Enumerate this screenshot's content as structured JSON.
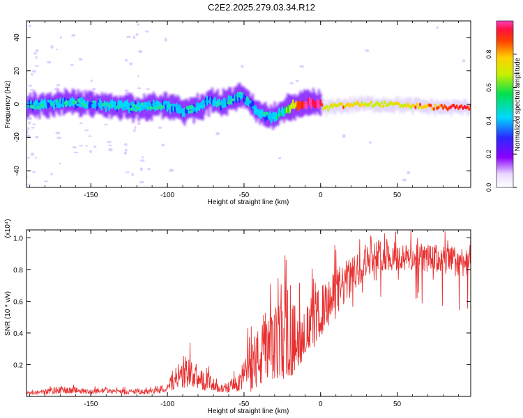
{
  "title": "C2E2.2025.279.03.34.R12",
  "colors": {
    "snr_line": "#e83030",
    "spectrum_core": "#ff0000",
    "spectrum_band": "#00c8ff",
    "spectrum_halo": "#8a00ff",
    "spectrum_faint": "#c9a8ff"
  },
  "chart_data": [
    {
      "type": "heatmap",
      "title": "",
      "xlabel": "Height of straight line (km)",
      "ylabel": "Frequency (Hz)",
      "xlim": [
        -192,
        98
      ],
      "ylim": [
        -50,
        50
      ],
      "xticks": [
        -150,
        -100,
        -50,
        0,
        50
      ],
      "xtick_labels": [
        "-150",
        "-100",
        "-50",
        "0",
        "50"
      ],
      "yticks": [
        -40,
        -20,
        0,
        20,
        40
      ],
      "ytick_labels": [
        "-40",
        "-20",
        "0",
        "20",
        "40"
      ],
      "colorbar": {
        "label": "Normalized spectral amplitude",
        "range": [
          0,
          1
        ],
        "ticks": [
          0.0,
          0.2,
          0.4,
          0.6,
          0.8
        ],
        "tick_labels": [
          "0.0",
          "0.2",
          "0.4",
          "0.6",
          "0.8"
        ]
      },
      "ridge": {
        "height_km": [
          -192,
          -175,
          -160,
          -150,
          -140,
          -130,
          -120,
          -110,
          -100,
          -90,
          -80,
          -72,
          -65,
          -58,
          -52,
          -47,
          -42,
          -37,
          -32,
          -27,
          -22,
          -18,
          -14,
          -10,
          -5,
          0,
          3,
          8,
          15,
          25,
          40,
          60,
          80,
          97
        ],
        "frequency_hz": [
          -1,
          0,
          1,
          0,
          -1,
          -1,
          -2,
          -1,
          -1,
          -4,
          -2,
          2,
          0,
          3,
          5,
          1,
          -4,
          -7,
          -8,
          -6,
          -3,
          -1,
          0,
          0,
          1,
          0,
          -3,
          -1,
          -1,
          0,
          0,
          -1,
          -2,
          -2
        ],
        "amplitude": [
          0.25,
          0.3,
          0.3,
          0.28,
          0.3,
          0.3,
          0.3,
          0.32,
          0.3,
          0.28,
          0.3,
          0.32,
          0.3,
          0.3,
          0.3,
          0.28,
          0.28,
          0.26,
          0.3,
          0.4,
          0.5,
          0.7,
          0.85,
          0.95,
          0.95,
          0.9,
          0.6,
          0.7,
          0.75,
          0.7,
          0.65,
          0.7,
          0.85,
          0.9
        ]
      }
    },
    {
      "type": "line",
      "title": "",
      "xlabel": "Height of straight line (km)",
      "ylabel": "SNR (10 * v/v)",
      "y_multiplier": "(x10⁴)",
      "xlim": [
        -192,
        98
      ],
      "ylim": [
        0,
        1.05
      ],
      "xticks": [
        -150,
        -100,
        -50,
        0,
        50
      ],
      "xtick_labels": [
        "-150",
        "-100",
        "-50",
        "0",
        "50"
      ],
      "yticks": [
        0.2,
        0.4,
        0.6,
        0.8,
        1.0
      ],
      "ytick_labels": [
        "0.2",
        "0.4",
        "0.6",
        "0.8",
        "1.0"
      ],
      "series": [
        {
          "name": "SNR",
          "x": [
            -192,
            -180,
            -170,
            -160,
            -150,
            -140,
            -130,
            -120,
            -110,
            -100,
            -95,
            -90,
            -85,
            -80,
            -75,
            -70,
            -65,
            -60,
            -55,
            -50,
            -45,
            -40,
            -35,
            -30,
            -25,
            -20,
            -15,
            -10,
            -5,
            0,
            5,
            10,
            15,
            20,
            25,
            30,
            35,
            40,
            50,
            60,
            70,
            80,
            90,
            97
          ],
          "y": [
            0.02,
            0.03,
            0.04,
            0.04,
            0.03,
            0.04,
            0.03,
            0.03,
            0.03,
            0.05,
            0.1,
            0.14,
            0.16,
            0.1,
            0.12,
            0.06,
            0.05,
            0.06,
            0.08,
            0.14,
            0.22,
            0.26,
            0.3,
            0.34,
            0.38,
            0.4,
            0.38,
            0.42,
            0.48,
            0.55,
            0.6,
            0.66,
            0.72,
            0.76,
            0.82,
            0.86,
            0.9,
            0.9,
            0.88,
            0.88,
            0.88,
            0.87,
            0.86,
            0.87
          ],
          "spread": [
            0.01,
            0.02,
            0.03,
            0.02,
            0.02,
            0.02,
            0.02,
            0.02,
            0.02,
            0.03,
            0.06,
            0.1,
            0.12,
            0.06,
            0.1,
            0.04,
            0.03,
            0.04,
            0.06,
            0.12,
            0.22,
            0.25,
            0.28,
            0.3,
            0.32,
            0.34,
            0.22,
            0.2,
            0.22,
            0.2,
            0.18,
            0.2,
            0.18,
            0.15,
            0.14,
            0.12,
            0.12,
            0.12,
            0.11,
            0.11,
            0.11,
            0.12,
            0.12,
            0.12
          ]
        }
      ]
    }
  ]
}
